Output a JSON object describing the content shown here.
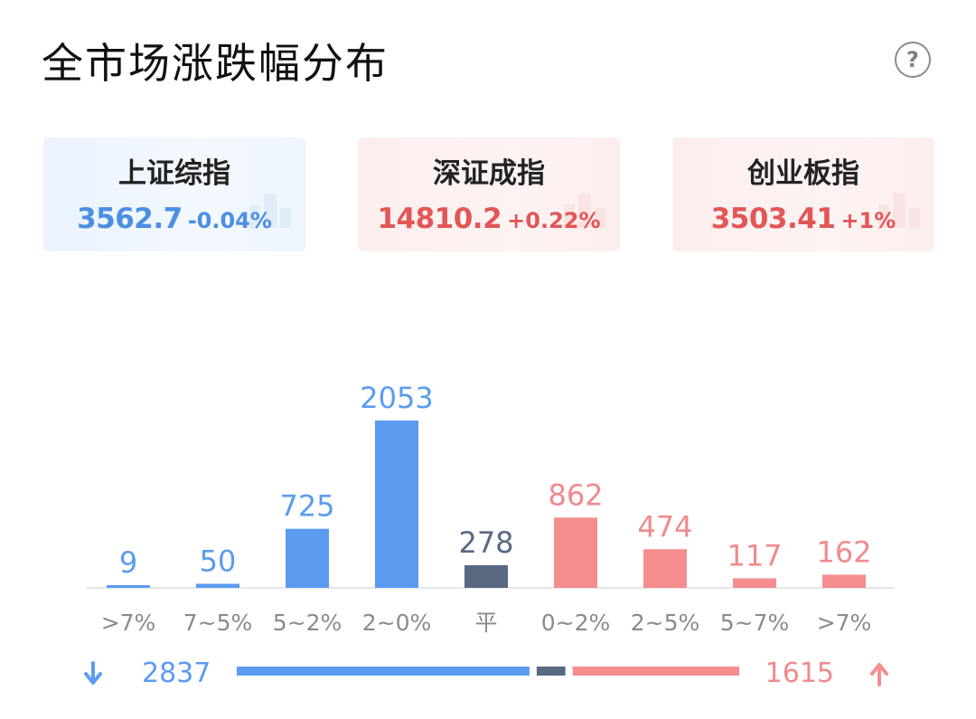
{
  "title": "全市场涨跌幅分布",
  "help_icon": "question-circle-icon",
  "indices": [
    {
      "name": "上证综指",
      "value": "3562.7",
      "change": "-0.04%",
      "color": "#4a8fe3",
      "theme": "blue"
    },
    {
      "name": "深证成指",
      "value": "14810.2",
      "change": "+0.22%",
      "color": "#e25656",
      "theme": "red"
    },
    {
      "name": "创业板指",
      "value": "3503.41",
      "change": "+1%",
      "color": "#e25656",
      "theme": "red"
    }
  ],
  "chart_data": {
    "type": "bar",
    "categories": [
      ">7%",
      "7~5%",
      "5~2%",
      "2~0%",
      "平",
      "0~2%",
      "2~5%",
      "5~7%",
      ">7%"
    ],
    "values": [
      9,
      50,
      725,
      2053,
      278,
      862,
      474,
      117,
      162
    ],
    "groups": [
      "down",
      "down",
      "down",
      "down",
      "flat",
      "up",
      "up",
      "up",
      "up"
    ],
    "colors": {
      "down": "#5b9cf0",
      "flat": "#5a6882",
      "up": "#f58d8f",
      "down_label": "#5b9cf0",
      "flat_label": "#5a6882",
      "up_label": "#f08a8c"
    },
    "summary": {
      "down_total": "2837",
      "up_total": "1615",
      "down_icon": "arrow-down-icon",
      "up_icon": "arrow-up-icon"
    }
  }
}
